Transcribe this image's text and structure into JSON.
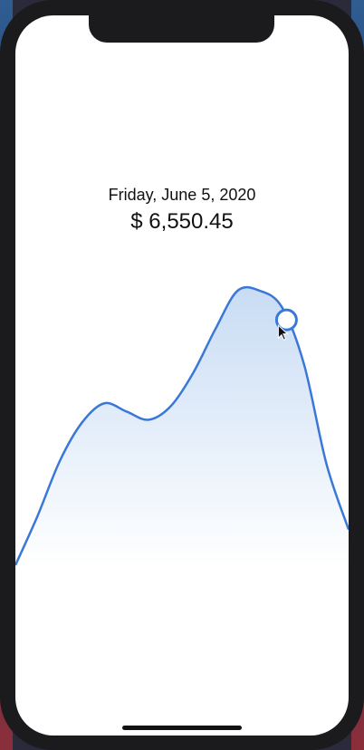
{
  "header": {
    "date": "Friday, June 5, 2020",
    "price": "$ 6,550.45"
  },
  "colors": {
    "line": "#3a78d8",
    "fill_top": "#c8dcf4",
    "background": "#ffffff"
  },
  "chart_data": {
    "type": "area",
    "title": "",
    "xlabel": "",
    "ylabel": "",
    "grid": false,
    "series": [
      {
        "values": [
          0.0,
          0.18,
          0.38,
          0.52,
          0.59,
          0.56,
          0.53,
          0.58,
          0.7,
          0.86,
          1.0,
          1.0,
          0.94,
          0.73,
          0.37,
          0.13
        ]
      }
    ],
    "selected_index": 12,
    "ylim": [
      0,
      1
    ]
  }
}
